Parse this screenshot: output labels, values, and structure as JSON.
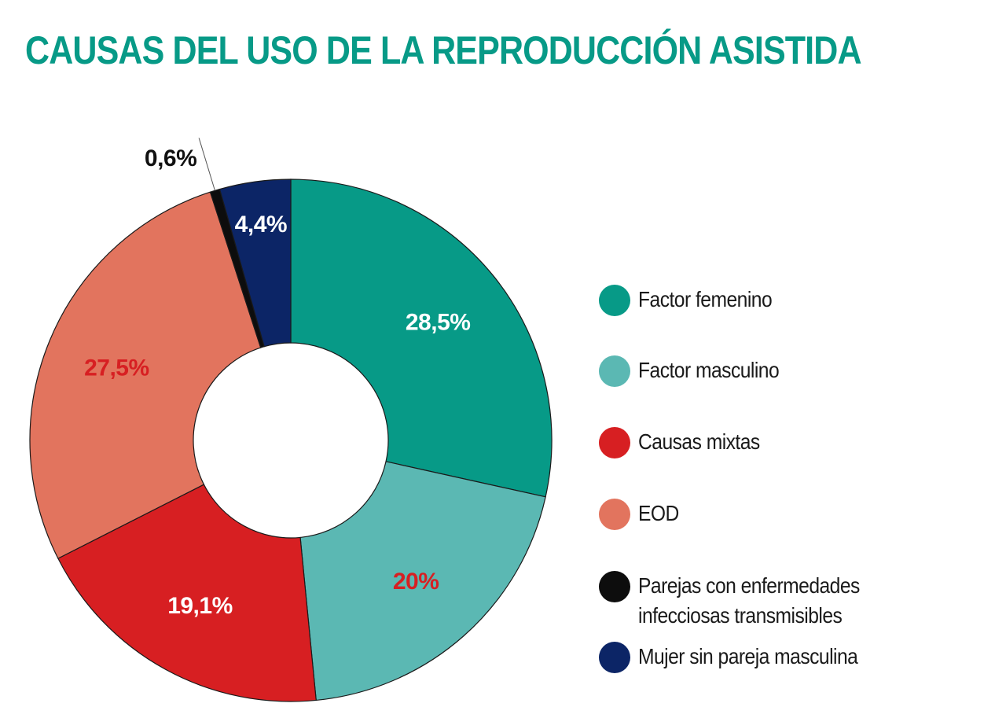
{
  "chart_data": {
    "type": "pie",
    "variant": "donut",
    "title": "CAUSAS DEL USO DE LA REPRODUCCIÓN ASISTIDA",
    "categories": [
      "Factor femenino",
      "Factor masculino",
      "Causas mixtas",
      "EOD",
      "Parejas con enfermedades infecciosas transmisibles",
      "Mujer sin pareja masculina"
    ],
    "values": [
      28.5,
      20,
      19.1,
      27.5,
      0.6,
      4.4
    ],
    "value_labels": [
      "28,5%",
      "20%",
      "19,1%",
      "27,5%",
      "0,6%",
      "4,4%"
    ],
    "colors": [
      "#079a87",
      "#5bb8b3",
      "#d71f22",
      "#e2745e",
      "#0d0d0d",
      "#0c2566"
    ],
    "label_colors": [
      "#ffffff",
      "#d71f22",
      "#ffffff",
      "#d71f22",
      "#111111",
      "#ffffff"
    ],
    "legend_position": "right"
  },
  "legend": {
    "items": [
      {
        "label_lines": [
          "Factor femenino"
        ],
        "color": "#079a87"
      },
      {
        "label_lines": [
          "Factor masculino"
        ],
        "color": "#5bb8b3"
      },
      {
        "label_lines": [
          "Causas mixtas"
        ],
        "color": "#d71f22"
      },
      {
        "label_lines": [
          "EOD"
        ],
        "color": "#e2745e"
      },
      {
        "label_lines": [
          "Parejas con enfermedades",
          "infecciosas transmisibles"
        ],
        "color": "#0d0d0d"
      },
      {
        "label_lines": [
          "Mujer sin pareja masculina"
        ],
        "color": "#0c2566"
      }
    ]
  }
}
